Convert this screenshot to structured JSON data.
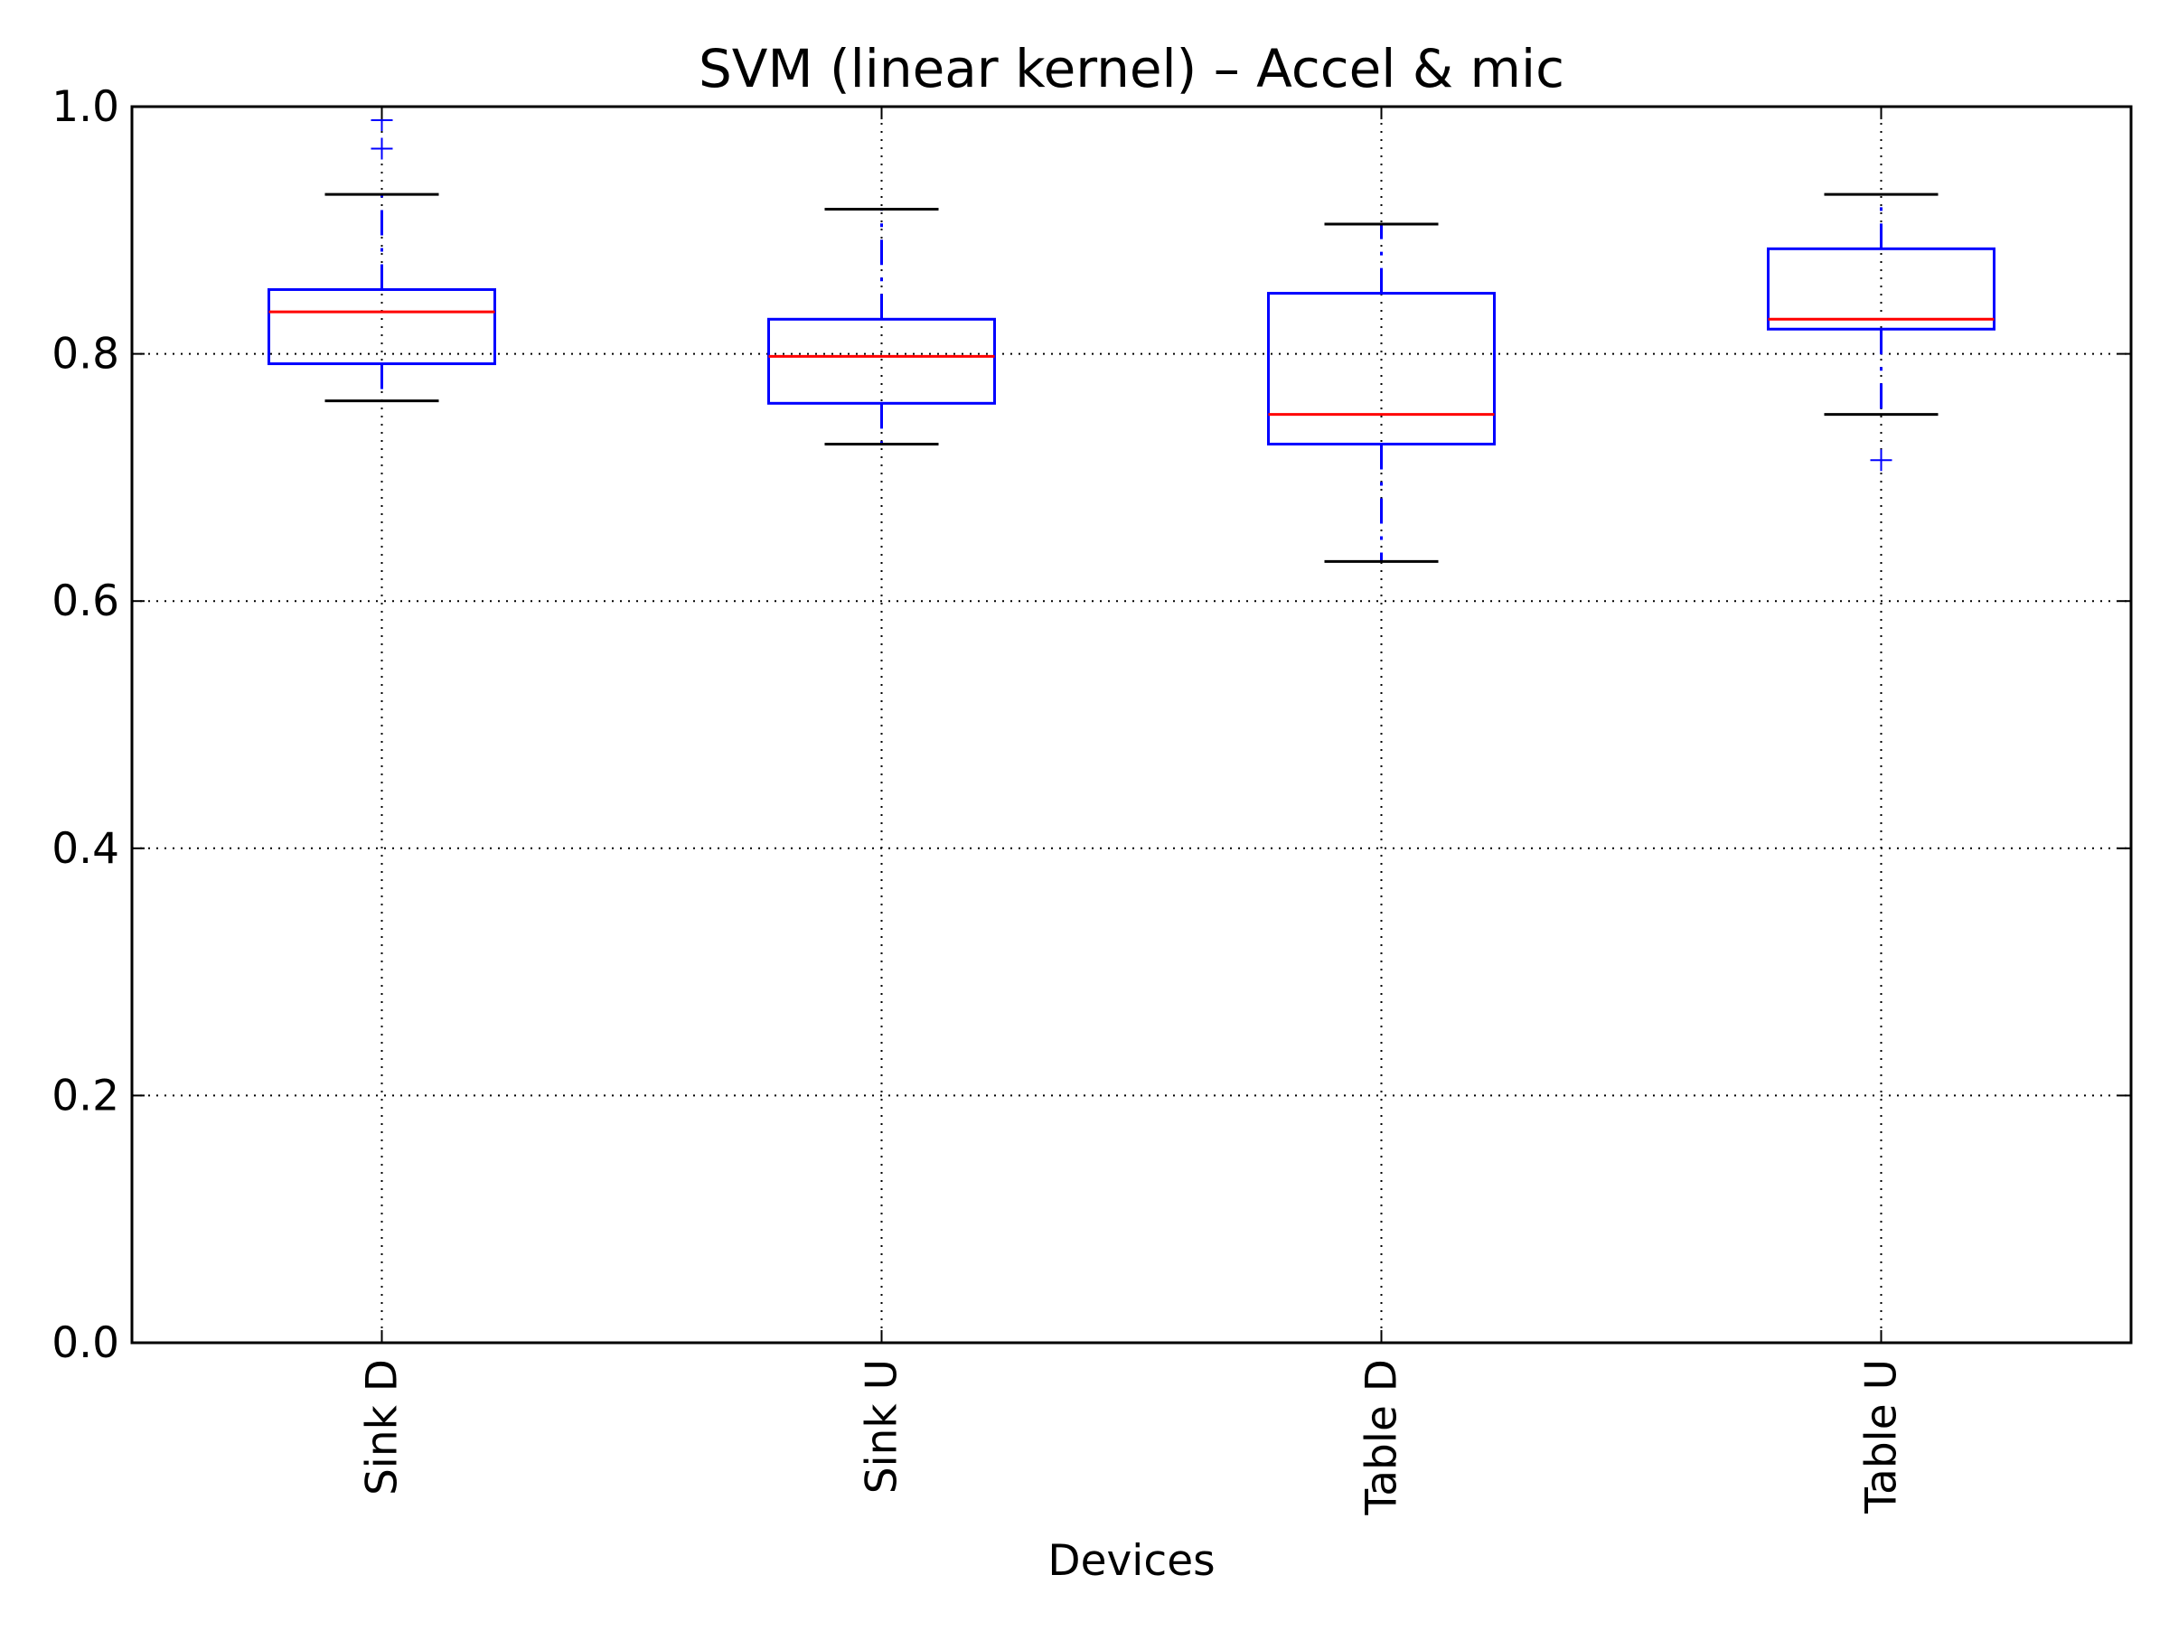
{
  "chart_data": {
    "type": "box",
    "title": "SVM (linear kernel) – Accel & mic",
    "xlabel": "Devices",
    "ylabel": "",
    "ylim": [
      0.0,
      1.0
    ],
    "yticks": [
      "0.0",
      "0.2",
      "0.4",
      "0.6",
      "0.8",
      "1.0"
    ],
    "grid": true,
    "categories": [
      "Sink D",
      "Sink U",
      "Table D",
      "Table U"
    ],
    "boxes": [
      {
        "category": "Sink D",
        "whisker_low": 0.762,
        "q1": 0.792,
        "median": 0.834,
        "q3": 0.852,
        "whisker_high": 0.929,
        "outliers": [
          0.966,
          0.989
        ]
      },
      {
        "category": "Sink U",
        "whisker_low": 0.727,
        "q1": 0.76,
        "median": 0.798,
        "q3": 0.828,
        "whisker_high": 0.917,
        "outliers": []
      },
      {
        "category": "Table D",
        "whisker_low": 0.632,
        "q1": 0.727,
        "median": 0.751,
        "q3": 0.849,
        "whisker_high": 0.905,
        "outliers": []
      },
      {
        "category": "Table U",
        "whisker_low": 0.751,
        "q1": 0.82,
        "median": 0.828,
        "q3": 0.885,
        "whisker_high": 0.929,
        "outliers": [
          0.714
        ]
      }
    ],
    "colors": {
      "box": "#0000ff",
      "median": "#ff0000",
      "whisker_cap": "#000000",
      "grid": "#000000",
      "axes": "#000000"
    }
  }
}
